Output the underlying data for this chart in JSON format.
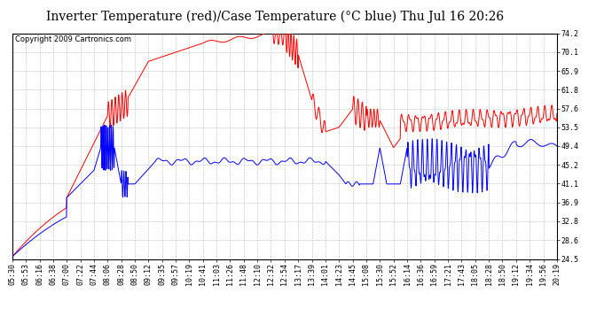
{
  "title": "Inverter Temperature (red)/Case Temperature (°C blue) Thu Jul 16 20:26",
  "copyright": "Copyright 2009 Cartronics.com",
  "ylabel_right_ticks": [
    24.5,
    28.6,
    32.8,
    36.9,
    41.1,
    45.2,
    49.4,
    53.5,
    57.6,
    61.8,
    65.9,
    70.1,
    74.2
  ],
  "xticklabels": [
    "05:30",
    "05:53",
    "06:16",
    "06:38",
    "07:00",
    "07:22",
    "07:44",
    "08:06",
    "08:28",
    "08:50",
    "09:12",
    "09:35",
    "09:57",
    "10:19",
    "10:41",
    "11:03",
    "11:26",
    "11:48",
    "12:10",
    "12:32",
    "12:54",
    "13:17",
    "13:39",
    "14:01",
    "14:23",
    "14:45",
    "15:08",
    "15:30",
    "15:52",
    "16:14",
    "16:36",
    "16:59",
    "17:21",
    "17:43",
    "18:05",
    "18:28",
    "18:50",
    "19:12",
    "19:34",
    "19:56",
    "20:19"
  ],
  "background_color": "#ffffff",
  "plot_bg_color": "#ffffff",
  "grid_color": "#bbbbbb",
  "red_color": "#ff0000",
  "blue_color": "#0000ff",
  "title_fontsize": 10,
  "copyright_fontsize": 6,
  "tick_fontsize": 6,
  "ymin": 24.5,
  "ymax": 74.2
}
